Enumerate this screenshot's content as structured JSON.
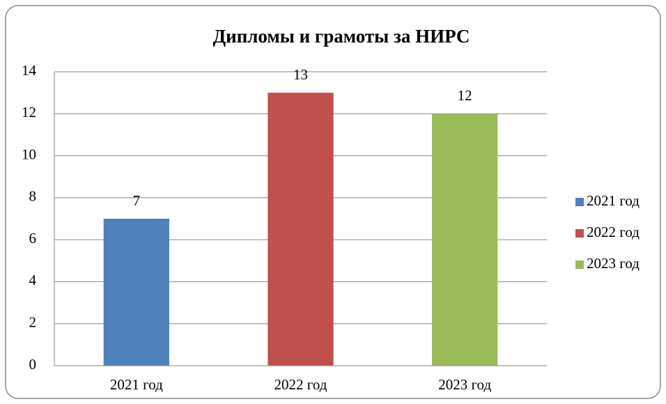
{
  "chart_data": {
    "type": "bar",
    "title": "Дипломы и грамоты за НИРС",
    "categories": [
      "2021 год",
      "2022 год",
      "2023 год"
    ],
    "values": [
      7,
      13,
      12
    ],
    "colors": [
      "#4f81bd",
      "#c0504d",
      "#9bbb59"
    ],
    "ylim": [
      0,
      14
    ],
    "yticks": [
      0,
      2,
      4,
      6,
      8,
      10,
      12,
      14
    ],
    "grid": true,
    "legend": "right"
  }
}
